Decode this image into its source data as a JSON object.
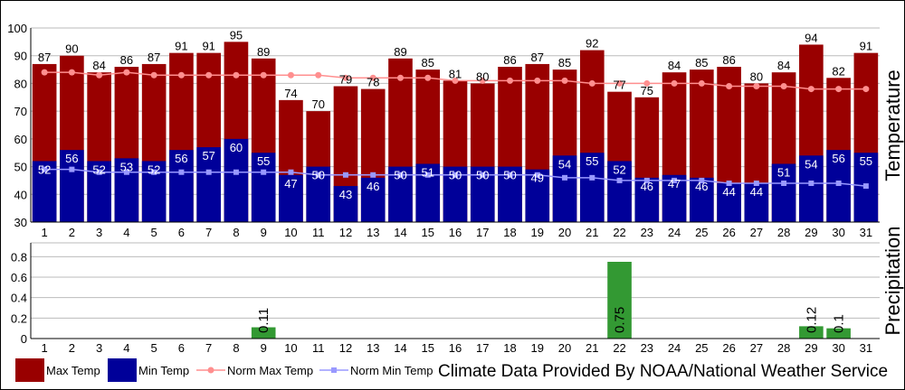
{
  "chart_data": [
    {
      "type": "bar",
      "ylabel": "Temperature",
      "ylim": [
        30,
        100
      ],
      "yticks": [
        30,
        40,
        50,
        60,
        70,
        80,
        90,
        100
      ],
      "categories": [
        "1",
        "2",
        "3",
        "4",
        "5",
        "6",
        "7",
        "8",
        "9",
        "10",
        "11",
        "12",
        "13",
        "14",
        "15",
        "16",
        "17",
        "18",
        "19",
        "20",
        "21",
        "22",
        "23",
        "24",
        "25",
        "26",
        "27",
        "28",
        "29",
        "30",
        "31"
      ],
      "series": [
        {
          "name": "Max Temp",
          "kind": "bar",
          "color": "#990000",
          "values": [
            87,
            90,
            84,
            86,
            87,
            91,
            91,
            95,
            89,
            74,
            70,
            79,
            78,
            89,
            85,
            81,
            80,
            86,
            87,
            85,
            92,
            77,
            75,
            84,
            85,
            86,
            80,
            84,
            94,
            82,
            91
          ]
        },
        {
          "name": "Min Temp",
          "kind": "bar",
          "color": "#000099",
          "values": [
            52,
            56,
            52,
            53,
            52,
            56,
            57,
            60,
            55,
            47,
            50,
            43,
            46,
            50,
            51,
            50,
            50,
            50,
            49,
            54,
            55,
            52,
            46,
            47,
            46,
            44,
            44,
            51,
            54,
            56,
            55
          ]
        },
        {
          "name": "Norm Max Temp",
          "kind": "line",
          "color": "#ff8f8f",
          "values": [
            84,
            84,
            83,
            84,
            83,
            83,
            83,
            83,
            83,
            83,
            83,
            82,
            82,
            82,
            82,
            81,
            81,
            81,
            81,
            81,
            80,
            80,
            80,
            80,
            80,
            79,
            79,
            79,
            78,
            78,
            78
          ]
        },
        {
          "name": "Norm Min Temp",
          "kind": "line",
          "color": "#9999ff",
          "values": [
            49,
            49,
            48,
            48,
            48,
            48,
            48,
            48,
            48,
            48,
            47,
            47,
            47,
            47,
            47,
            47,
            47,
            47,
            47,
            46,
            46,
            45,
            45,
            45,
            45,
            44,
            44,
            44,
            44,
            44,
            43
          ]
        }
      ],
      "grid": true
    },
    {
      "type": "bar",
      "ylabel": "Precipitation",
      "ylim": [
        0,
        0.9
      ],
      "yticks": [
        "0",
        "0.2",
        "0.4",
        "0.6",
        "0.8"
      ],
      "categories": [
        "1",
        "2",
        "3",
        "4",
        "5",
        "6",
        "7",
        "8",
        "9",
        "10",
        "11",
        "12",
        "13",
        "14",
        "15",
        "16",
        "17",
        "18",
        "19",
        "20",
        "21",
        "22",
        "23",
        "24",
        "25",
        "26",
        "27",
        "28",
        "29",
        "30",
        "31"
      ],
      "series": [
        {
          "name": "Precipitation",
          "kind": "bar",
          "color": "#339933",
          "values": [
            0,
            0,
            0,
            0,
            0,
            0,
            0,
            0,
            0.11,
            0,
            0,
            0,
            0,
            0,
            0,
            0,
            0,
            0,
            0,
            0,
            0,
            0.75,
            0,
            0,
            0,
            0,
            0,
            0,
            0.12,
            0.1,
            0
          ],
          "labels": [
            "",
            "",
            "",
            "",
            "",
            "",
            "",
            "",
            "0.11",
            "",
            "",
            "",
            "",
            "",
            "",
            "",
            "",
            "",
            "",
            "",
            "",
            "0.75",
            "",
            "",
            "",
            "",
            "",
            "",
            "0.12",
            "0.1",
            ""
          ]
        }
      ],
      "grid": true
    }
  ],
  "legend": {
    "placement": "bottom-left",
    "items": [
      "Max Temp",
      "Min Temp",
      "Norm Max Temp",
      "Norm Min Temp"
    ]
  },
  "credit": "Climate Data Provided By NOAA/National Weather Service"
}
